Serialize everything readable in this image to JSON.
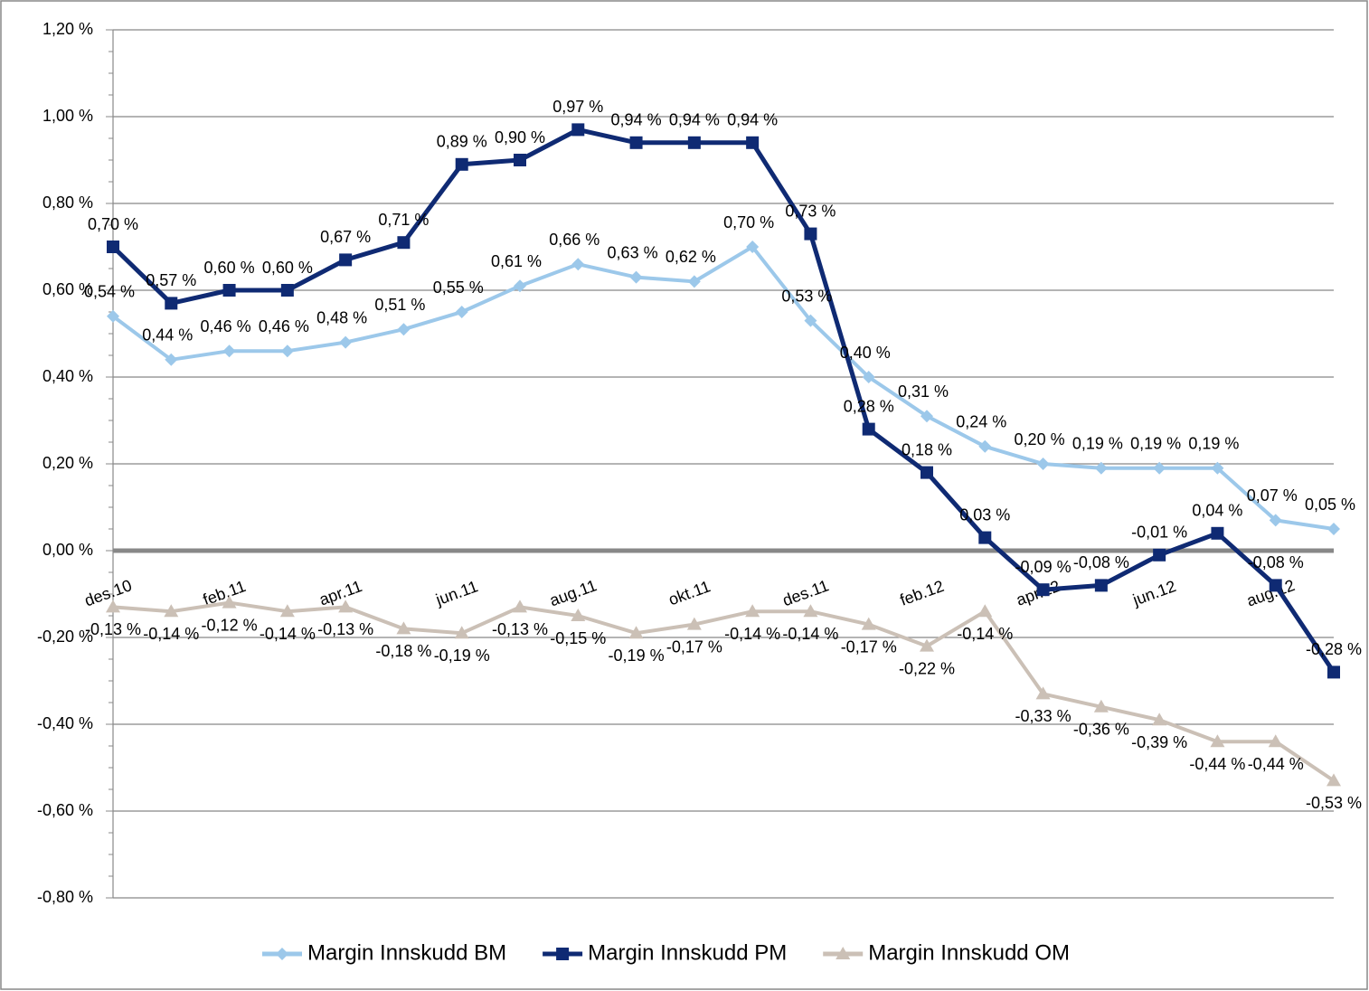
{
  "chart_data": {
    "type": "line",
    "categories": [
      "des.10",
      null,
      "feb.11",
      null,
      "apr.11",
      null,
      "jun.11",
      null,
      "aug.11",
      null,
      "okt.11",
      null,
      "des.11",
      null,
      "feb.12",
      null,
      "apr.12",
      null,
      "jun.12",
      null,
      "aug.12",
      null
    ],
    "series": [
      {
        "name": "Margin Innskudd BM",
        "color": "#9cc8ea",
        "marker": "diamond",
        "values": [
          0.54,
          0.44,
          0.46,
          0.46,
          0.48,
          0.51,
          0.55,
          0.61,
          0.66,
          0.63,
          0.62,
          0.7,
          0.53,
          0.4,
          0.31,
          0.24,
          0.2,
          0.19,
          0.19,
          0.19,
          0.07,
          0.05
        ],
        "value_labels": [
          "0,54 %",
          "0,44 %",
          "0,46 %",
          "0,46 %",
          "0,48 %",
          "0,51 %",
          "0,55 %",
          "0,61 %",
          "0,66 %",
          "0,63 %",
          "0,62 %",
          "0,70 %",
          "0,53 %",
          "0,40 %",
          "0,31 %",
          "0,24 %",
          "0,20 %",
          "0,19 %",
          "0,19 %",
          "0,19 %",
          "0,07 %",
          "0,05 %"
        ]
      },
      {
        "name": "Margin Innskudd PM",
        "color": "#0f2a73",
        "marker": "square",
        "values": [
          0.7,
          0.57,
          0.6,
          0.6,
          0.67,
          0.71,
          0.89,
          0.9,
          0.97,
          0.94,
          0.94,
          0.94,
          0.73,
          0.28,
          0.18,
          0.03,
          -0.09,
          -0.08,
          -0.01,
          0.04,
          -0.08,
          -0.28
        ],
        "value_labels": [
          "0,70 %",
          "0,57 %",
          "0,60 %",
          "0,60 %",
          "0,67 %",
          "0,71 %",
          "0,89 %",
          "0,90 %",
          "0,97 %",
          "0,94 %",
          "0,94 %",
          "0,94 %",
          "0,73 %",
          "0,28 %",
          "0,18 %",
          "0,03 %",
          "-0,09 %",
          "-0,08 %",
          "-0,01 %",
          "0,04 %",
          "-0,08 %",
          "-0,28 %"
        ]
      },
      {
        "name": "Margin Innskudd OM",
        "color": "#cbc0b6",
        "marker": "triangle",
        "values": [
          -0.13,
          -0.14,
          -0.12,
          -0.14,
          -0.13,
          -0.18,
          -0.19,
          -0.13,
          -0.15,
          -0.19,
          -0.17,
          -0.14,
          -0.14,
          -0.17,
          -0.22,
          -0.14,
          -0.33,
          -0.36,
          -0.39,
          -0.44,
          -0.44,
          -0.53
        ],
        "value_labels": [
          "-0,13 %",
          "-0,14 %",
          "-0,12 %",
          "-0,14 %",
          "-0,13 %",
          "-0,18 %",
          "-0,19 %",
          "-0,13 %",
          "-0,15 %",
          "-0,19 %",
          "-0,17 %",
          "-0,14 %",
          "-0,14 %",
          "-0,17 %",
          "-0,22 %",
          "-0,14 %",
          "-0,33 %",
          "-0,36 %",
          "-0,39 %",
          "-0,44 %",
          "-0,44 %",
          "-0,53 %"
        ]
      }
    ],
    "ylim": [
      -0.8,
      1.2
    ],
    "yticks": [
      {
        "value": -0.8,
        "label": "-0,80 %"
      },
      {
        "value": -0.6,
        "label": "-0,60 %"
      },
      {
        "value": -0.4,
        "label": "-0,40 %"
      },
      {
        "value": -0.2,
        "label": "-0,20 %"
      },
      {
        "value": 0,
        "label": "0,00 %"
      },
      {
        "value": 0.2,
        "label": "0,20 %"
      },
      {
        "value": 0.4,
        "label": "0,40 %"
      },
      {
        "value": 0.6,
        "label": "0,60 %"
      },
      {
        "value": 0.8,
        "label": "0,80 %"
      },
      {
        "value": 1.0,
        "label": "1,00 %"
      },
      {
        "value": 1.2,
        "label": "1,20 %"
      }
    ],
    "grid": true,
    "legend": "bottom"
  }
}
